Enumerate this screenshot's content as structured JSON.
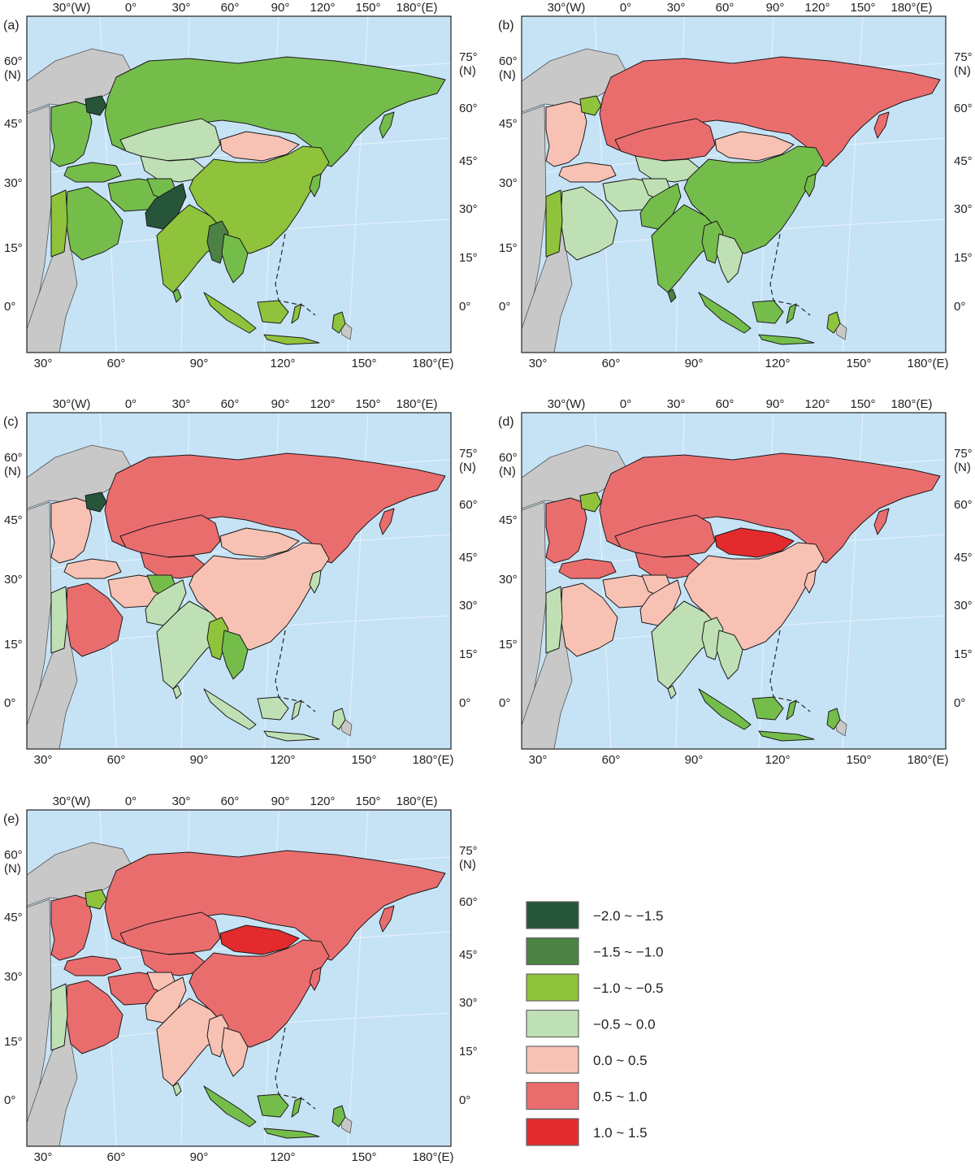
{
  "colors": {
    "ocean": "#c6e3f6",
    "land_other": "#c8c8c8",
    "border": "#1a1a1a",
    "coast": "#5b9bd5"
  },
  "axis_labels": {
    "top": [
      "30°(W)",
      "0°",
      "30°",
      "60°",
      "90°",
      "120°",
      "150°",
      "180°(E)"
    ],
    "bottom": [
      "30°",
      "60°",
      "90°",
      "120°",
      "150°",
      "180°(E)"
    ],
    "left": [
      "60°\n(N)",
      "45°",
      "30°",
      "15°",
      "0°"
    ],
    "right": [
      "75°\n(N)",
      "60°",
      "45°",
      "30°",
      "15°",
      "0°"
    ]
  },
  "legend": {
    "items": [
      {
        "label": "−2.0 ~ −1.5",
        "color": "#26553a"
      },
      {
        "label": "−1.5 ~ −1.0",
        "color": "#4c8244"
      },
      {
        "label": "−1.0 ~ −0.5",
        "color": "#8fc33b"
      },
      {
        "label": "−0.5 ~ 0.0",
        "color": "#bfe0b4"
      },
      {
        "label": "0.0 ~ 0.5",
        "color": "#f7c2b4"
      },
      {
        "label": "0.5 ~ 1.0",
        "color": "#ea6d6e"
      },
      {
        "label": "1.0 ~ 1.5",
        "color": "#e32a2d"
      }
    ]
  },
  "panels": [
    {
      "label": "(a)",
      "fills": {
        "russia": "#75bd4b",
        "europe": "#75bd4b",
        "belarus": "#26553a",
        "kazakhstan": "#bfe0b4",
        "central_asia": "#bfe0b4",
        "mongolia": "#f7c2b4",
        "china": "#8fc33b",
        "india": "#8fc33b",
        "pakistan": "#26553a",
        "afghanistan": "#75bd4b",
        "iran": "#75bd4b",
        "arabia": "#75bd4b",
        "levant": "#8fc33b",
        "turkey": "#75bd4b",
        "myanmar": "#4c8244",
        "se_asia": "#75bd4b",
        "indonesia": "#8fc33b",
        "japan": "#75bd4b",
        "koreas": "#75bd4b",
        "sri_lanka": "#75bd4b",
        "png": "#8fc33b"
      }
    },
    {
      "label": "(b)",
      "fills": {
        "russia": "#ea6d6e",
        "europe": "#f7c2b4",
        "belarus": "#8fc33b",
        "kazakhstan": "#ea6d6e",
        "central_asia": "#bfe0b4",
        "mongolia": "#f7c2b4",
        "china": "#75bd4b",
        "india": "#75bd4b",
        "pakistan": "#75bd4b",
        "afghanistan": "#bfe0b4",
        "iran": "#bfe0b4",
        "arabia": "#bfe0b4",
        "levant": "#8fc33b",
        "turkey": "#f7c2b4",
        "myanmar": "#75bd4b",
        "se_asia": "#bfe0b4",
        "indonesia": "#75bd4b",
        "japan": "#ea6d6e",
        "koreas": "#75bd4b",
        "sri_lanka": "#4c8244",
        "png": "#8fc33b"
      }
    },
    {
      "label": "(c)",
      "fills": {
        "russia": "#ea6d6e",
        "europe": "#f7c2b4",
        "belarus": "#26553a",
        "kazakhstan": "#ea6d6e",
        "central_asia": "#ea6d6e",
        "mongolia": "#f7c2b4",
        "china": "#f7c2b4",
        "india": "#bfe0b4",
        "pakistan": "#bfe0b4",
        "afghanistan": "#75bd4b",
        "iran": "#f7c2b4",
        "arabia": "#ea6d6e",
        "levant": "#bfe0b4",
        "turkey": "#f7c2b4",
        "myanmar": "#8fc33b",
        "se_asia": "#75bd4b",
        "indonesia": "#bfe0b4",
        "japan": "#ea6d6e",
        "koreas": "#bfe0b4",
        "sri_lanka": "#bfe0b4",
        "png": "#bfe0b4"
      }
    },
    {
      "label": "(d)",
      "fills": {
        "russia": "#ea6d6e",
        "europe": "#ea6d6e",
        "belarus": "#8fc33b",
        "kazakhstan": "#ea6d6e",
        "central_asia": "#ea6d6e",
        "mongolia": "#e32a2d",
        "china": "#f7c2b4",
        "india": "#bfe0b4",
        "pakistan": "#f7c2b4",
        "afghanistan": "#f7c2b4",
        "iran": "#f7c2b4",
        "arabia": "#f7c2b4",
        "levant": "#bfe0b4",
        "turkey": "#ea6d6e",
        "myanmar": "#bfe0b4",
        "se_asia": "#bfe0b4",
        "indonesia": "#75bd4b",
        "japan": "#ea6d6e",
        "koreas": "#f7c2b4",
        "sri_lanka": "#bfe0b4",
        "png": "#75bd4b"
      }
    },
    {
      "label": "(e)",
      "fills": {
        "russia": "#ea6d6e",
        "europe": "#ea6d6e",
        "belarus": "#8fc33b",
        "kazakhstan": "#ea6d6e",
        "central_asia": "#ea6d6e",
        "mongolia": "#e32a2d",
        "china": "#ea6d6e",
        "india": "#f7c2b4",
        "pakistan": "#f7c2b4",
        "afghanistan": "#f7c2b4",
        "iran": "#ea6d6e",
        "arabia": "#ea6d6e",
        "levant": "#bfe0b4",
        "turkey": "#ea6d6e",
        "myanmar": "#f7c2b4",
        "se_asia": "#f7c2b4",
        "indonesia": "#75bd4b",
        "japan": "#ea6d6e",
        "koreas": "#ea6d6e",
        "sri_lanka": "#bfe0b4",
        "png": "#75bd4b"
      }
    }
  ]
}
